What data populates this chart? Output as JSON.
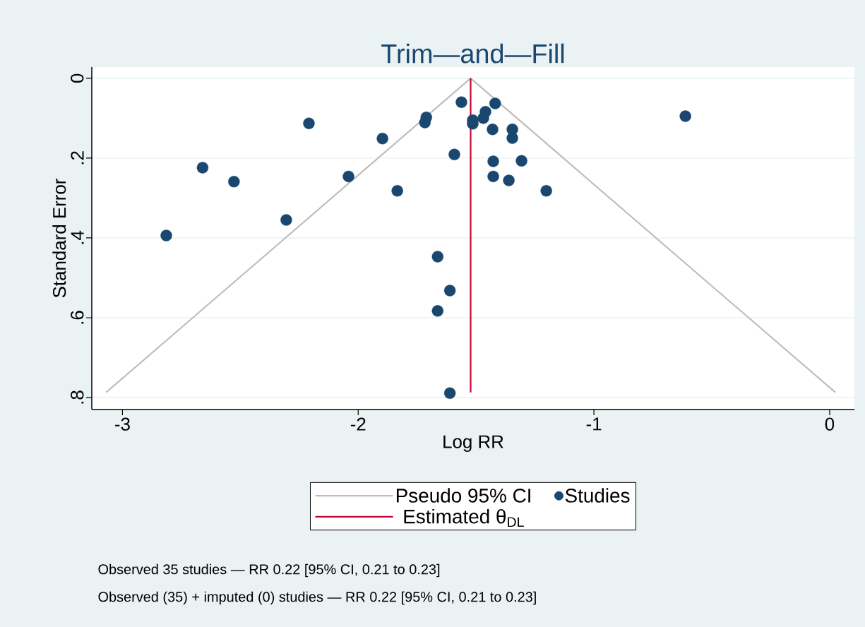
{
  "chart_data": {
    "type": "scatter",
    "title": "Trim—and—Fill",
    "xlabel": "Log RR",
    "ylabel": "Standard Error",
    "xlim": [
      -3.13,
      0.105
    ],
    "ylim": [
      0.83,
      -0.028
    ],
    "xticks": [
      -3,
      -2,
      -1,
      0
    ],
    "yticks": [
      0,
      {
        "value": 0.2,
        "label": ".2"
      },
      {
        "value": 0.4,
        "label": ".4"
      },
      {
        "value": 0.6,
        "label": ".6"
      },
      {
        "value": 0.8,
        "label": ".8"
      }
    ],
    "grid": "y",
    "legend": "bottom",
    "series": [
      {
        "type": "line",
        "name": "Pseudo 95% CI",
        "marker": "none",
        "color": "#bebebe",
        "x": [
          -3.069,
          -1.523,
          0.024
        ],
        "values": [
          0.787,
          0,
          0.787
        ]
      },
      {
        "name": "Studies",
        "marker": "circle",
        "color": "#1a476f",
        "x": [
          -2.814,
          -2.66,
          -2.527,
          -2.209,
          -2.305,
          -2.041,
          -1.897,
          -1.834,
          -1.711,
          -1.717,
          -1.562,
          -1.592,
          -1.663,
          -1.611,
          -1.663,
          -1.611,
          -1.514,
          -1.514,
          -1.46,
          -1.469,
          -1.419,
          -1.43,
          -1.346,
          -1.346,
          -1.427,
          -1.307,
          -1.427,
          -1.361,
          -1.202,
          -0.612
        ],
        "values": [
          0.394,
          0.224,
          0.259,
          0.113,
          0.355,
          0.246,
          0.151,
          0.282,
          0.098,
          0.111,
          0.06,
          0.191,
          0.447,
          0.532,
          0.583,
          0.789,
          0.105,
          0.114,
          0.084,
          0.1,
          0.063,
          0.128,
          0.128,
          0.15,
          0.208,
          0.207,
          0.246,
          0.256,
          0.282,
          0.095
        ]
      },
      {
        "type": "line",
        "name": "Estimated θ$_{DL}$",
        "marker": "none",
        "color": "#c10534",
        "x": [
          -1.523,
          -1.523
        ],
        "values": [
          0,
          0.787
        ]
      }
    ],
    "annotations": [
      "Observed 35 studies — RR 0.22 [95% CI, 0.21 to 0.23]",
      "Observed (35) + imputed (0) studies — RR 0.22 [95% CI, 0.21 to 0.23]"
    ]
  }
}
